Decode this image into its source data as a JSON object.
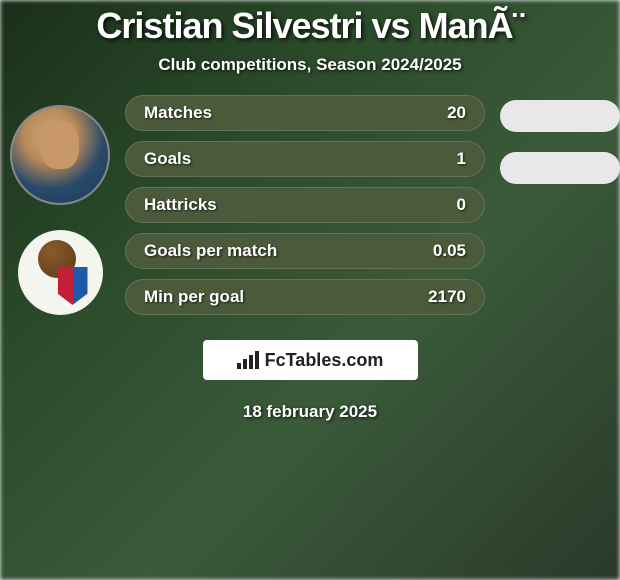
{
  "title": "Cristian Silvestri vs ManÃ¨",
  "subtitle": "Club competitions, Season 2024/2025",
  "date": "18 february 2025",
  "footer_brand": "FcTables.com",
  "stat_bar_bg": "#4a5a3a",
  "right_pill_bg": "#e8e8e8",
  "stats": [
    {
      "label": "Matches",
      "value": "20"
    },
    {
      "label": "Goals",
      "value": "1"
    },
    {
      "label": "Hattricks",
      "value": "0"
    },
    {
      "label": "Goals per match",
      "value": "0.05"
    },
    {
      "label": "Min per goal",
      "value": "2170"
    }
  ],
  "right_pills_count": 2,
  "colors": {
    "text": "#ffffff",
    "badge_bg": "#ffffff",
    "badge_text": "#222222"
  },
  "typography": {
    "title_fontsize": 36,
    "subtitle_fontsize": 17,
    "stat_fontsize": 17,
    "date_fontsize": 17
  }
}
